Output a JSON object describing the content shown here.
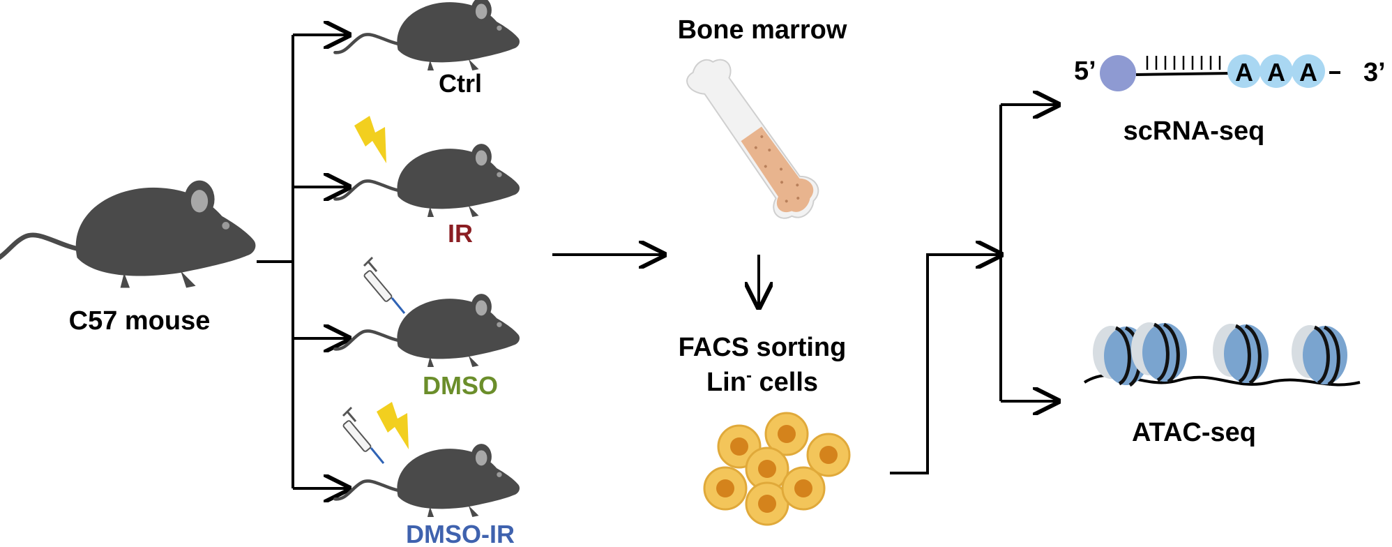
{
  "source": {
    "label": "C57 mouse",
    "icon": "mouse-icon"
  },
  "groups": [
    {
      "label": "Ctrl",
      "color": "#000000",
      "treatments": []
    },
    {
      "label": "IR",
      "color": "#8b1e23",
      "treatments": [
        "lightning-icon"
      ]
    },
    {
      "label": "DMSO",
      "color": "#6b8e2b",
      "treatments": [
        "syringe-icon"
      ]
    },
    {
      "label": "DMSO-IR",
      "color": "#3f62ae",
      "treatments": [
        "syringe-icon",
        "lightning-icon"
      ]
    }
  ],
  "tissue": {
    "label": "Bone marrow",
    "icon": "bone-icon"
  },
  "sorting": {
    "line1": "FACS sorting",
    "line2_main": "Lin",
    "line2_sup": "-",
    "line2_rest": " cells",
    "icon": "cells-icon"
  },
  "outputs": [
    {
      "label": "scRNA-seq",
      "icon": "mrna-icon",
      "five_prime": "5’",
      "three_prime": "3’",
      "bases": [
        "A",
        "A",
        "A"
      ]
    },
    {
      "label": "ATAC-seq",
      "icon": "nucleosome-icon"
    }
  ],
  "colors": {
    "mouse": "#4a4a4a",
    "mouse_ear": "#a8a8a8",
    "lightning": "#f2cf1f",
    "bone_marrow": "#e8b48e",
    "cell": "#f3c55a",
    "cell_nucleus": "#d4831c",
    "cap": "#8e9ad2",
    "polya": "#a9d7f2",
    "nucleosome": "#7aa4cf"
  }
}
